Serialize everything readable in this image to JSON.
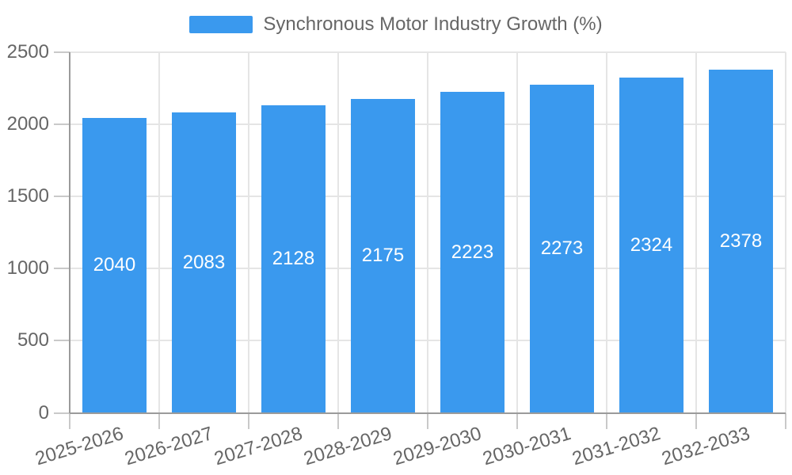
{
  "chart_data": {
    "type": "bar",
    "title": "Synchronous Motor Industry Growth (%)",
    "categories": [
      "2025-2026",
      "2026-2027",
      "2027-2028",
      "2028-2029",
      "2029-2030",
      "2030-2031",
      "2031-2032",
      "2032-2033"
    ],
    "values": [
      2040,
      2083,
      2128,
      2175,
      2223,
      2273,
      2324,
      2378
    ],
    "series": [
      {
        "name": "Synchronous Motor Industry Growth (%)",
        "values": [
          2040,
          2083,
          2128,
          2175,
          2223,
          2273,
          2324,
          2378
        ]
      }
    ],
    "xlabel": "",
    "ylabel": "",
    "ylim": [
      0,
      2500
    ],
    "yticks": [
      0,
      500,
      1000,
      1500,
      2000,
      2500
    ],
    "grid": true,
    "legend_position": "top",
    "bar_value_labels_inside": true,
    "colors": {
      "bar": "#3a99ee",
      "axis": "#9b9b9b",
      "grid": "#e5e5e5",
      "tick": "#c9c9c9",
      "text": "#666666",
      "value_label": "#ffffff",
      "background": "#ffffff"
    }
  }
}
